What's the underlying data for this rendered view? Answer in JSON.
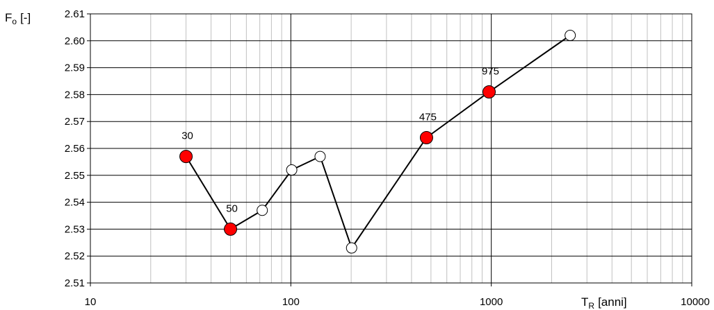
{
  "chart_data": {
    "type": "scatter",
    "title": "",
    "ylabel": {
      "main": "F",
      "sub": "o",
      "unit": "[-]"
    },
    "xlabel": {
      "main": "T",
      "sub": "R",
      "unit": "[anni]"
    },
    "xscale": "log",
    "xlim": [
      10,
      10000
    ],
    "ylim": [
      2.51,
      2.61
    ],
    "grid": true,
    "legend": "none",
    "x_ticks": [
      {
        "value": 10,
        "label": "10"
      },
      {
        "value": 100,
        "label": "100"
      },
      {
        "value": 1000,
        "label": "1000"
      },
      {
        "value": 10000,
        "label": "10000"
      }
    ],
    "y_ticks": [
      {
        "value": 2.51,
        "label": "2.51"
      },
      {
        "value": 2.52,
        "label": "2.52"
      },
      {
        "value": 2.53,
        "label": "2.53"
      },
      {
        "value": 2.54,
        "label": "2.54"
      },
      {
        "value": 2.55,
        "label": "2.55"
      },
      {
        "value": 2.56,
        "label": "2.56"
      },
      {
        "value": 2.57,
        "label": "2.57"
      },
      {
        "value": 2.58,
        "label": "2.58"
      },
      {
        "value": 2.59,
        "label": "2.59"
      },
      {
        "value": 2.6,
        "label": "2.60"
      },
      {
        "value": 2.61,
        "label": "2.61"
      }
    ],
    "series": [
      {
        "line_color": "#000000",
        "points": [
          {
            "x": 30,
            "y": 2.557,
            "highlight": true,
            "label": "30"
          },
          {
            "x": 50,
            "y": 2.53,
            "highlight": true,
            "label": "50"
          },
          {
            "x": 72,
            "y": 2.537,
            "highlight": false,
            "label": ""
          },
          {
            "x": 101,
            "y": 2.552,
            "highlight": false,
            "label": ""
          },
          {
            "x": 140,
            "y": 2.557,
            "highlight": false,
            "label": ""
          },
          {
            "x": 201,
            "y": 2.523,
            "highlight": false,
            "label": ""
          },
          {
            "x": 475,
            "y": 2.564,
            "highlight": true,
            "label": "475"
          },
          {
            "x": 975,
            "y": 2.581,
            "highlight": true,
            "label": "975"
          },
          {
            "x": 2475,
            "y": 2.602,
            "highlight": false,
            "label": ""
          }
        ]
      }
    ],
    "colors": {
      "highlight_fill": "#ff0000",
      "normal_fill": "#ffffff",
      "marker_stroke": "#000000",
      "major_grid": "#000000",
      "minor_grid": "#c0c0c0"
    }
  }
}
